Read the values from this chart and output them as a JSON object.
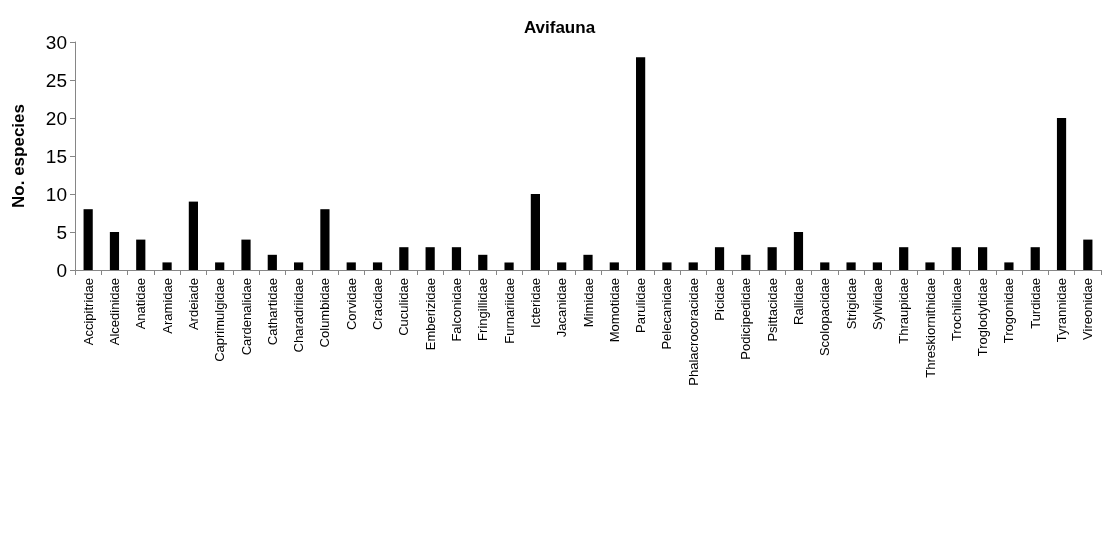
{
  "chart_data": {
    "type": "bar",
    "title": "Avifauna",
    "ylabel": "No. especies",
    "categories": [
      "Accipitridae",
      "Alcedinidae",
      "Anatidae",
      "Aramidae",
      "Ardeiade",
      "Caprimulgidae",
      "Cardenalidae",
      "Cathartidae",
      "Charadriidae",
      "Columbidae",
      "Corvidae",
      "Cracidae",
      "Cuculidae",
      "Emberizidae",
      "Falconidae",
      "Fringillidae",
      "Furnariidae",
      "Icteridae",
      "Jacanidae",
      "Mimidae",
      "Momotidae",
      "Parulidae",
      "Pelecanidae",
      "Phalacrocoracidae",
      "Picidae",
      "Podicipedidae",
      "Psittacidae",
      "Rallidae",
      "Scolopacidae",
      "Strigidae",
      "Sylviidae",
      "Thraupidae",
      "Threskiornithidae",
      "Trochilidae",
      "Troglodytidae",
      "Trogonidae",
      "Turdidae",
      "Tyrannidae",
      "Vireonidae"
    ],
    "values": [
      8,
      5,
      4,
      1,
      9,
      1,
      4,
      2,
      1,
      8,
      1,
      1,
      3,
      3,
      3,
      2,
      1,
      10,
      1,
      2,
      1,
      28,
      1,
      1,
      3,
      2,
      3,
      5,
      1,
      1,
      1,
      3,
      1,
      3,
      3,
      1,
      3,
      20,
      4
    ],
    "color": "#000000",
    "ylim": [
      0,
      30
    ],
    "yticks": [
      0,
      5,
      10,
      15,
      20,
      25,
      30
    ],
    "grid": false
  }
}
